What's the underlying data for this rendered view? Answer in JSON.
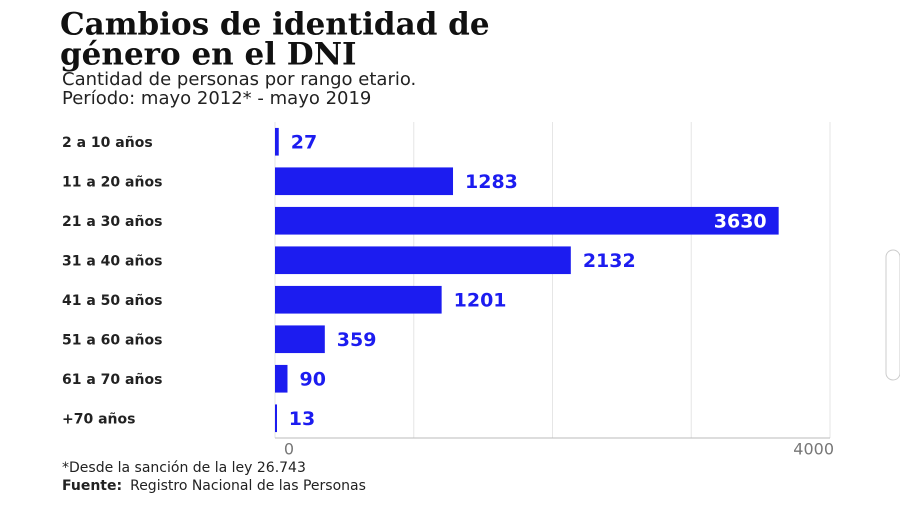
{
  "chart_data": {
    "type": "bar",
    "orientation": "horizontal",
    "title": [
      "Cambios de identidad de",
      "género en el DNI"
    ],
    "subtitle": [
      "Cantidad de personas por rango etario.",
      "Período: mayo 2012* - mayo 2019"
    ],
    "categories": [
      "2 a 10 años",
      "11 a 20 años",
      "21 a 30 años",
      "31 a 40 años",
      "41 a 50 años",
      "51 a 60 años",
      "61 a 70 años",
      "+70 años"
    ],
    "values": [
      27,
      1283,
      3630,
      2132,
      1201,
      359,
      90,
      13
    ],
    "color": "#1c1cf0",
    "xlim": [
      0,
      4000
    ],
    "xticks": [
      0,
      {
        "value": 1000,
        "label": null
      },
      {
        "value": 2000,
        "label": null
      },
      {
        "value": 3000,
        "label": null
      },
      4000
    ],
    "grid": true,
    "footnote": "*Desde la sanción de la ley 26.743",
    "source_label": "Fuente:",
    "source": "Registro Nacional de las Personas"
  }
}
